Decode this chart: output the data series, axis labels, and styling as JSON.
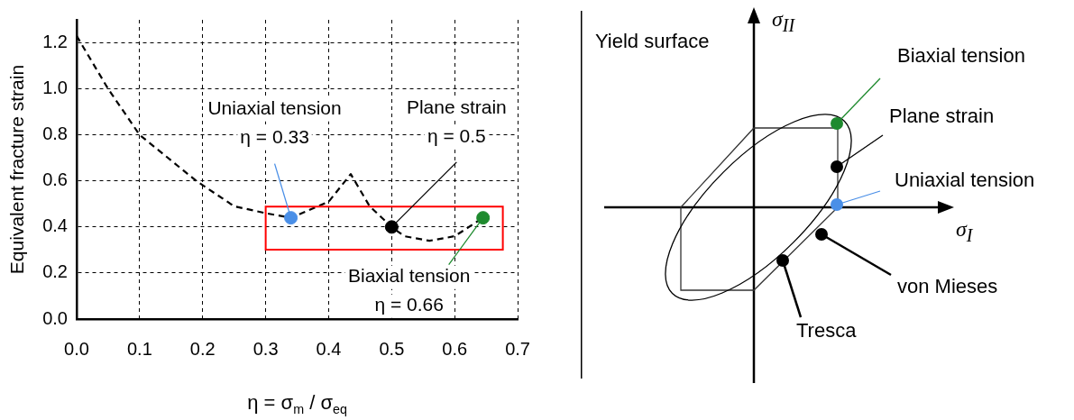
{
  "chart_data": [
    {
      "type": "line",
      "xlabel": "η = σ$_{m}$ / σ$_{eq}$",
      "ylabel": "Equivalent fracture strain",
      "xlim": [
        0,
        0.7
      ],
      "ylim": [
        0,
        1.3
      ],
      "xticks": [
        {
          "value": 0,
          "label": "0.0"
        },
        0.1,
        0.2,
        0.3,
        0.4,
        0.5,
        0.6,
        0.7
      ],
      "yticks": [
        {
          "value": 0,
          "label": "0.0"
        },
        0.2,
        0.4,
        0.6,
        0.8,
        {
          "value": 1,
          "label": "1.0"
        },
        1.2
      ],
      "grid": true,
      "legend": false,
      "series": [
        {
          "type": "line",
          "color": "#000000",
          "line_style": "dashed",
          "marker": "none",
          "x": [
            0,
            0.05,
            0.1,
            0.19,
            0.25,
            0.3,
            0.34,
            0.4,
            0.435,
            0.465,
            0.5,
            0.52,
            0.56,
            0.6,
            0.645
          ],
          "values": [
            1.23,
            1,
            0.8,
            0.6,
            0.49,
            0.46,
            0.44,
            0.51,
            0.63,
            0.49,
            0.4,
            0.36,
            0.34,
            0.36,
            0.44
          ]
        },
        {
          "type": "scatter",
          "marker": "circle",
          "x": [
            0.34,
            0.5,
            0.645
          ],
          "values": [
            0.44,
            0.4,
            0.44
          ],
          "colors": [
            "#4a8fe7",
            "#000000",
            "#1e8a2e"
          ]
        }
      ],
      "annotations": [
        {
          "text": "Uniaxial tension\nη = 0.33",
          "x": 0.34,
          "y": 0.44
        },
        {
          "text": "Plane strain\nη = 0.5",
          "x": 0.5,
          "y": 0.4
        },
        {
          "text": "Biaxial tension\nη = 0.66",
          "x": 0.645,
          "y": 0.44
        }
      ]
    },
    {
      "type": "other",
      "xlabel": "σ$_{I}$",
      "ylabel": "σ$_{II}$",
      "annotations": [
        "Yield surface",
        "Biaxial tension",
        "Plane strain",
        "Uniaxial tension",
        "von Mieses",
        "Tresca"
      ]
    }
  ]
}
